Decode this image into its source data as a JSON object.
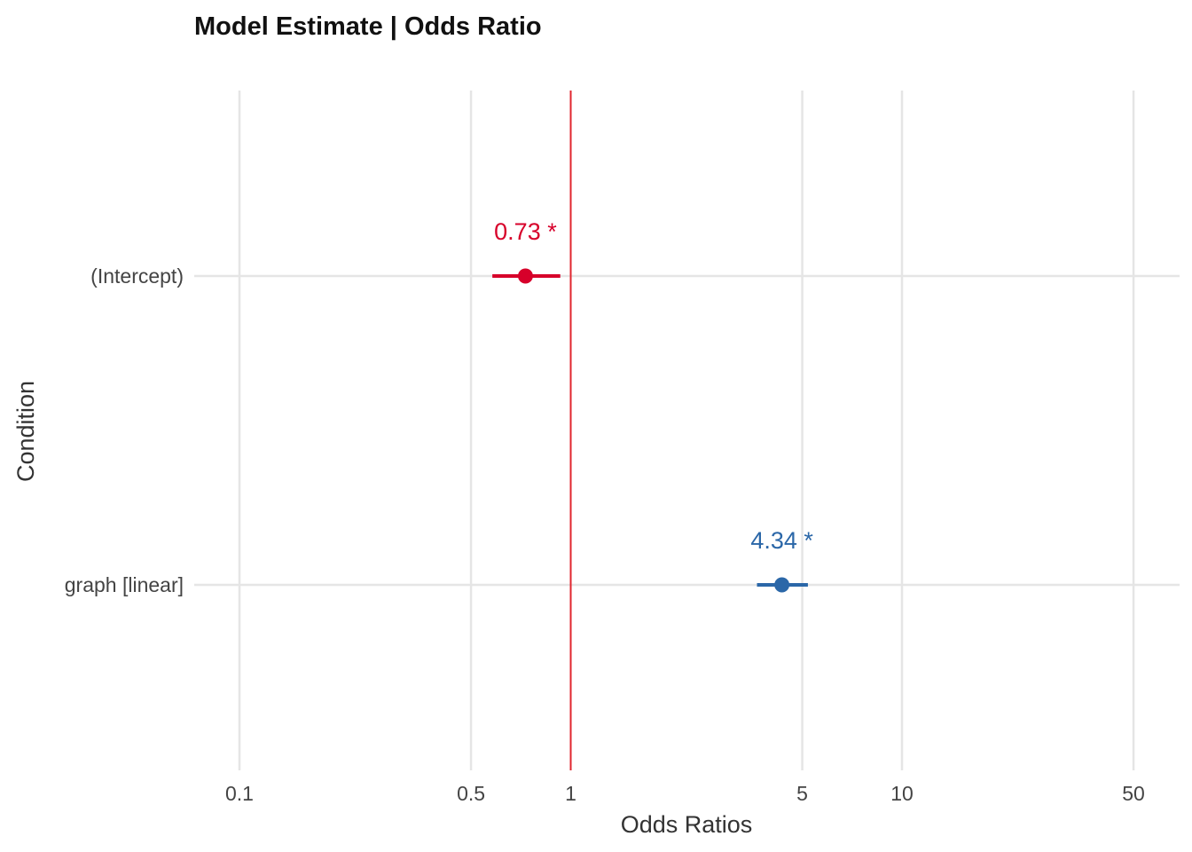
{
  "chart_data": {
    "type": "scatter",
    "title": "Model Estimate | Odds Ratio",
    "xlabel": "Odds Ratios",
    "ylabel": "Condition",
    "x_scale": "log",
    "xlim": [
      0.1,
      60
    ],
    "x_ticks": [
      {
        "value": 0.1,
        "label": "0.1"
      },
      {
        "value": 0.5,
        "label": "0.5"
      },
      {
        "value": 1,
        "label": "1"
      },
      {
        "value": 5,
        "label": "5"
      },
      {
        "value": 10,
        "label": "10"
      },
      {
        "value": 50,
        "label": "50"
      }
    ],
    "reference_line": {
      "value": 1,
      "color": "#e0262e"
    },
    "grid": true,
    "legend": "none",
    "categories": [
      "(Intercept)",
      "graph [linear]"
    ],
    "points": [
      {
        "category": "(Intercept)",
        "estimate": 0.73,
        "ci_low": 0.58,
        "ci_high": 0.93,
        "label": "0.73 *",
        "color": "#d7002a"
      },
      {
        "category": "graph [linear]",
        "estimate": 4.34,
        "ci_low": 3.65,
        "ci_high": 5.2,
        "label": "4.34 *",
        "color": "#2b67a8"
      }
    ]
  }
}
